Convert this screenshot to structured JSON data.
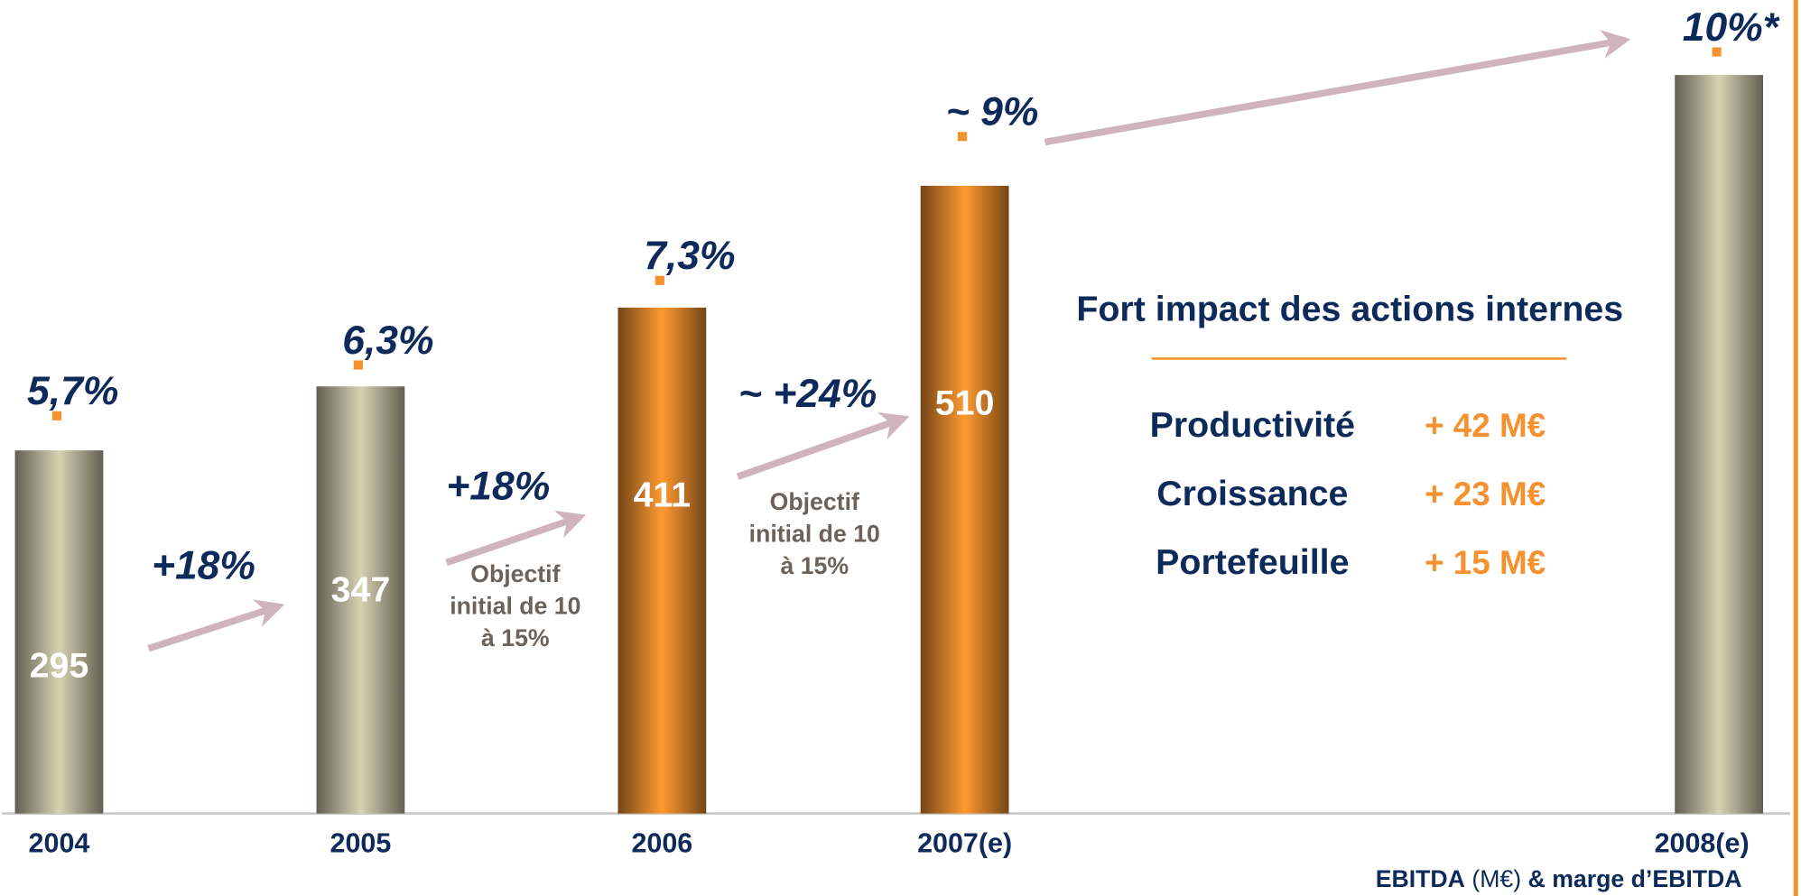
{
  "chart_data": {
    "type": "bar",
    "categories": [
      "2004",
      "2005",
      "2006",
      "2007(e)",
      "2008(e)"
    ],
    "values": [
      295,
      347,
      411,
      510,
      600
    ],
    "value_labels": [
      "295",
      "347",
      "411",
      "510",
      null
    ],
    "colors": [
      "#d8d2b4",
      "#d8d2b4",
      "#ff9a30",
      "#ff9a30",
      "#d8d2b4"
    ],
    "ylim": [
      0,
      660
    ],
    "margin_series": {
      "name": "marge d’EBITDA",
      "color": "#f5922f",
      "axis": "y2",
      "values": [
        5.7,
        6.3,
        7.3,
        9,
        10
      ],
      "value_labels": [
        "5,7%",
        "6,3%",
        "7,3%",
        "~ 9%",
        "10%*"
      ]
    },
    "y2lim": [
      1,
      10.6
    ],
    "growth": [
      "+18%",
      "+18%",
      "~ +24%"
    ],
    "objective_notes": [
      [
        "Objectif",
        "initial de 10",
        "à 15%"
      ],
      [
        "Objectif",
        "initial de 10",
        "à 15%"
      ]
    ],
    "panel": {
      "title": "Fort impact des actions internes",
      "items": [
        {
          "label": "Productivité",
          "value": "+  42 M€"
        },
        {
          "label": "Croissance",
          "value": "+ 23 M€"
        },
        {
          "label": "Portefeuille",
          "value": "+  15 M€"
        }
      ]
    },
    "footer": [
      "EBITDA",
      "(M€)",
      "& marge d’EBITDA"
    ]
  }
}
